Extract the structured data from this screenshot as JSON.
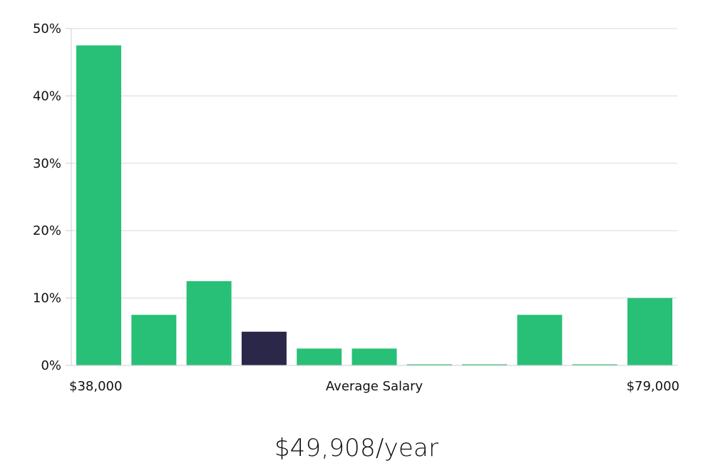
{
  "chart_data": {
    "type": "bar",
    "title": "",
    "xlabel": "Average Salary",
    "ylabel": "",
    "ylim": [
      0,
      50
    ],
    "yticks": [
      "0%",
      "10%",
      "20%",
      "30%",
      "40%",
      "50%"
    ],
    "ytick_values": [
      0,
      10,
      20,
      30,
      40,
      50
    ],
    "x_range_labels": {
      "min": "$38,000",
      "max": "$79,000"
    },
    "grid": true,
    "values": [
      47.5,
      7.5,
      12.5,
      5,
      2.5,
      2.5,
      0,
      0,
      7.5,
      0,
      10
    ],
    "highlight_index": 3,
    "colors": {
      "bar": "#28c076",
      "highlight": "#2a2748",
      "grid": "#d9d9d9",
      "axis": "#cccccc"
    }
  },
  "summary": {
    "salary": "$49,908/year"
  }
}
